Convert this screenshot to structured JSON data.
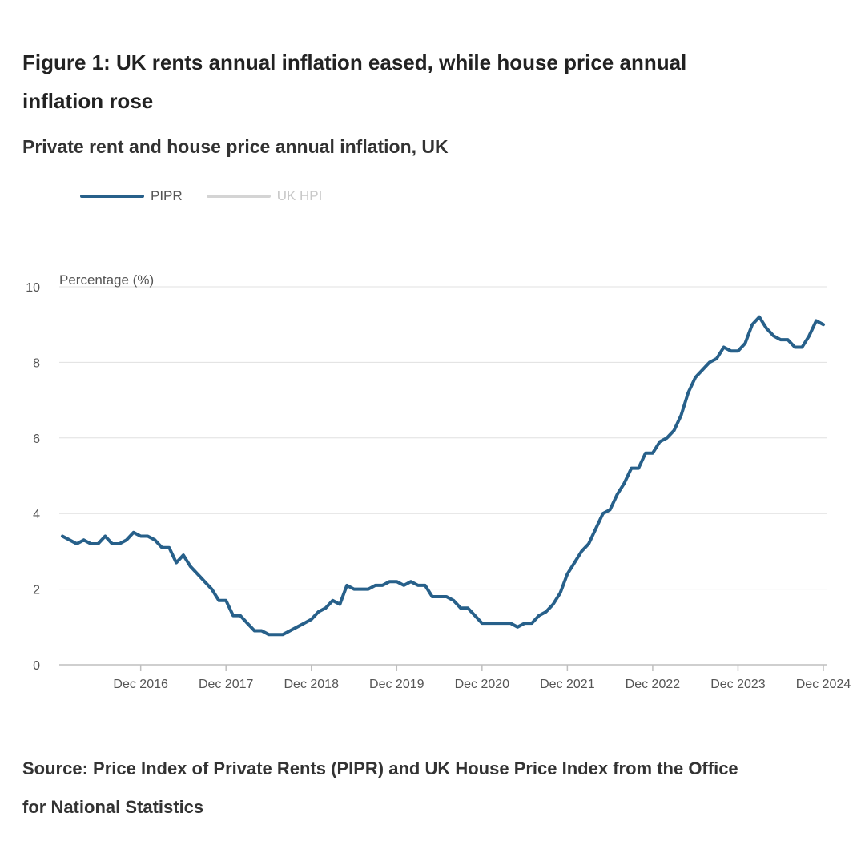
{
  "title": "Figure 1: UK rents annual inflation eased, while house price annual inflation rose",
  "subtitle": "Private rent and house price annual inflation, UK",
  "source": "Source: Price Index of Private Rents (PIPR) and UK House Price Index from the Office for National Statistics",
  "legend": [
    {
      "label": "PIPR",
      "color": "#27608a"
    },
    {
      "label": "UK HPI",
      "color": "#cccccc"
    }
  ],
  "colors": {
    "pipr": "#27608a",
    "hpi": "#cccccc",
    "grid": "#e0e0e0",
    "axis": "#bfbfbf"
  },
  "chart_data": {
    "type": "line",
    "title": "Private rent and house price annual inflation, UK",
    "ylabel": "Percentage (%)",
    "xlabel": "",
    "ylim": [
      0,
      10
    ],
    "yticks": [
      0,
      2,
      4,
      6,
      8,
      10
    ],
    "xlim": [
      "2016-01",
      "2024-12"
    ],
    "x_tick_labels": [
      "Dec 2016",
      "Dec 2017",
      "Dec 2018",
      "Dec 2019",
      "Dec 2020",
      "Dec 2021",
      "Dec 2022",
      "Dec 2023",
      "Dec 2024"
    ],
    "x_tick_dates": [
      "2016-12",
      "2017-12",
      "2018-12",
      "2019-12",
      "2020-12",
      "2021-12",
      "2022-12",
      "2023-12",
      "2024-12"
    ],
    "grid": true,
    "legend_position": "top-left",
    "series": [
      {
        "name": "PIPR",
        "start": "2016-01",
        "frequency": "monthly",
        "values": [
          3.4,
          3.3,
          3.2,
          3.3,
          3.2,
          3.2,
          3.4,
          3.2,
          3.2,
          3.3,
          3.5,
          3.4,
          3.4,
          3.3,
          3.1,
          3.1,
          2.7,
          2.9,
          2.6,
          2.4,
          2.2,
          2.0,
          1.7,
          1.7,
          1.3,
          1.3,
          1.1,
          0.9,
          0.9,
          0.8,
          0.8,
          0.8,
          0.9,
          1.0,
          1.1,
          1.2,
          1.4,
          1.5,
          1.7,
          1.6,
          2.1,
          2.0,
          2.0,
          2.0,
          2.1,
          2.1,
          2.2,
          2.2,
          2.1,
          2.2,
          2.1,
          2.1,
          1.8,
          1.8,
          1.8,
          1.7,
          1.5,
          1.5,
          1.3,
          1.1,
          1.1,
          1.1,
          1.1,
          1.1,
          1.0,
          1.1,
          1.1,
          1.3,
          1.4,
          1.6,
          1.9,
          2.4,
          2.7,
          3.0,
          3.2,
          3.6,
          4.0,
          4.1,
          4.5,
          4.8,
          5.2,
          5.2,
          5.6,
          5.6,
          5.9,
          6.0,
          6.2,
          6.6,
          7.2,
          7.6,
          7.8,
          8.0,
          8.1,
          8.4,
          8.3,
          8.3,
          8.5,
          9.0,
          9.2,
          8.9,
          8.7,
          8.6,
          8.6,
          8.4,
          8.4,
          8.7,
          9.1,
          9.0
        ]
      },
      {
        "name": "UK HPI",
        "hidden": true,
        "values": []
      }
    ]
  }
}
